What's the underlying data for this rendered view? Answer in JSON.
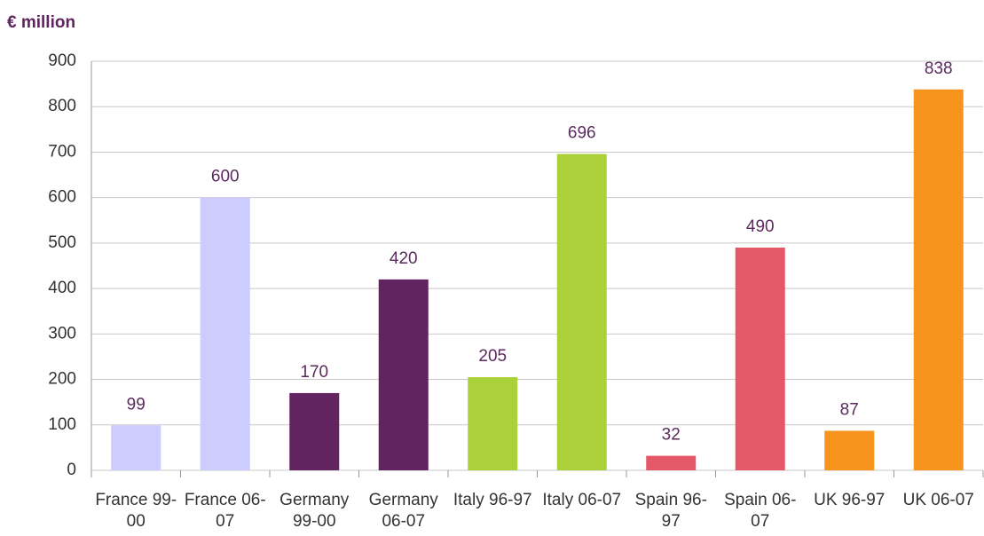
{
  "chart_data": {
    "type": "bar",
    "title": "€ million",
    "categories": [
      "France 99-00",
      "France 06-07",
      "Germany 99-00",
      "Germany 06-07",
      "Italy 96-97",
      "Italy 06-07",
      "Spain 96-97",
      "Spain 06-07",
      "UK 96-97",
      "UK 06-07"
    ],
    "values": [
      99,
      600,
      170,
      420,
      205,
      696,
      32,
      490,
      87,
      838
    ],
    "colors": [
      "#ccccff",
      "#ccccff",
      "#622461",
      "#622461",
      "#aad03a",
      "#aad03a",
      "#e45868",
      "#e45868",
      "#f7941d",
      "#f7941d"
    ],
    "ylim": [
      0,
      900
    ],
    "yticks": [
      0,
      100,
      200,
      300,
      400,
      500,
      600,
      700,
      800,
      900
    ],
    "grid": true
  }
}
